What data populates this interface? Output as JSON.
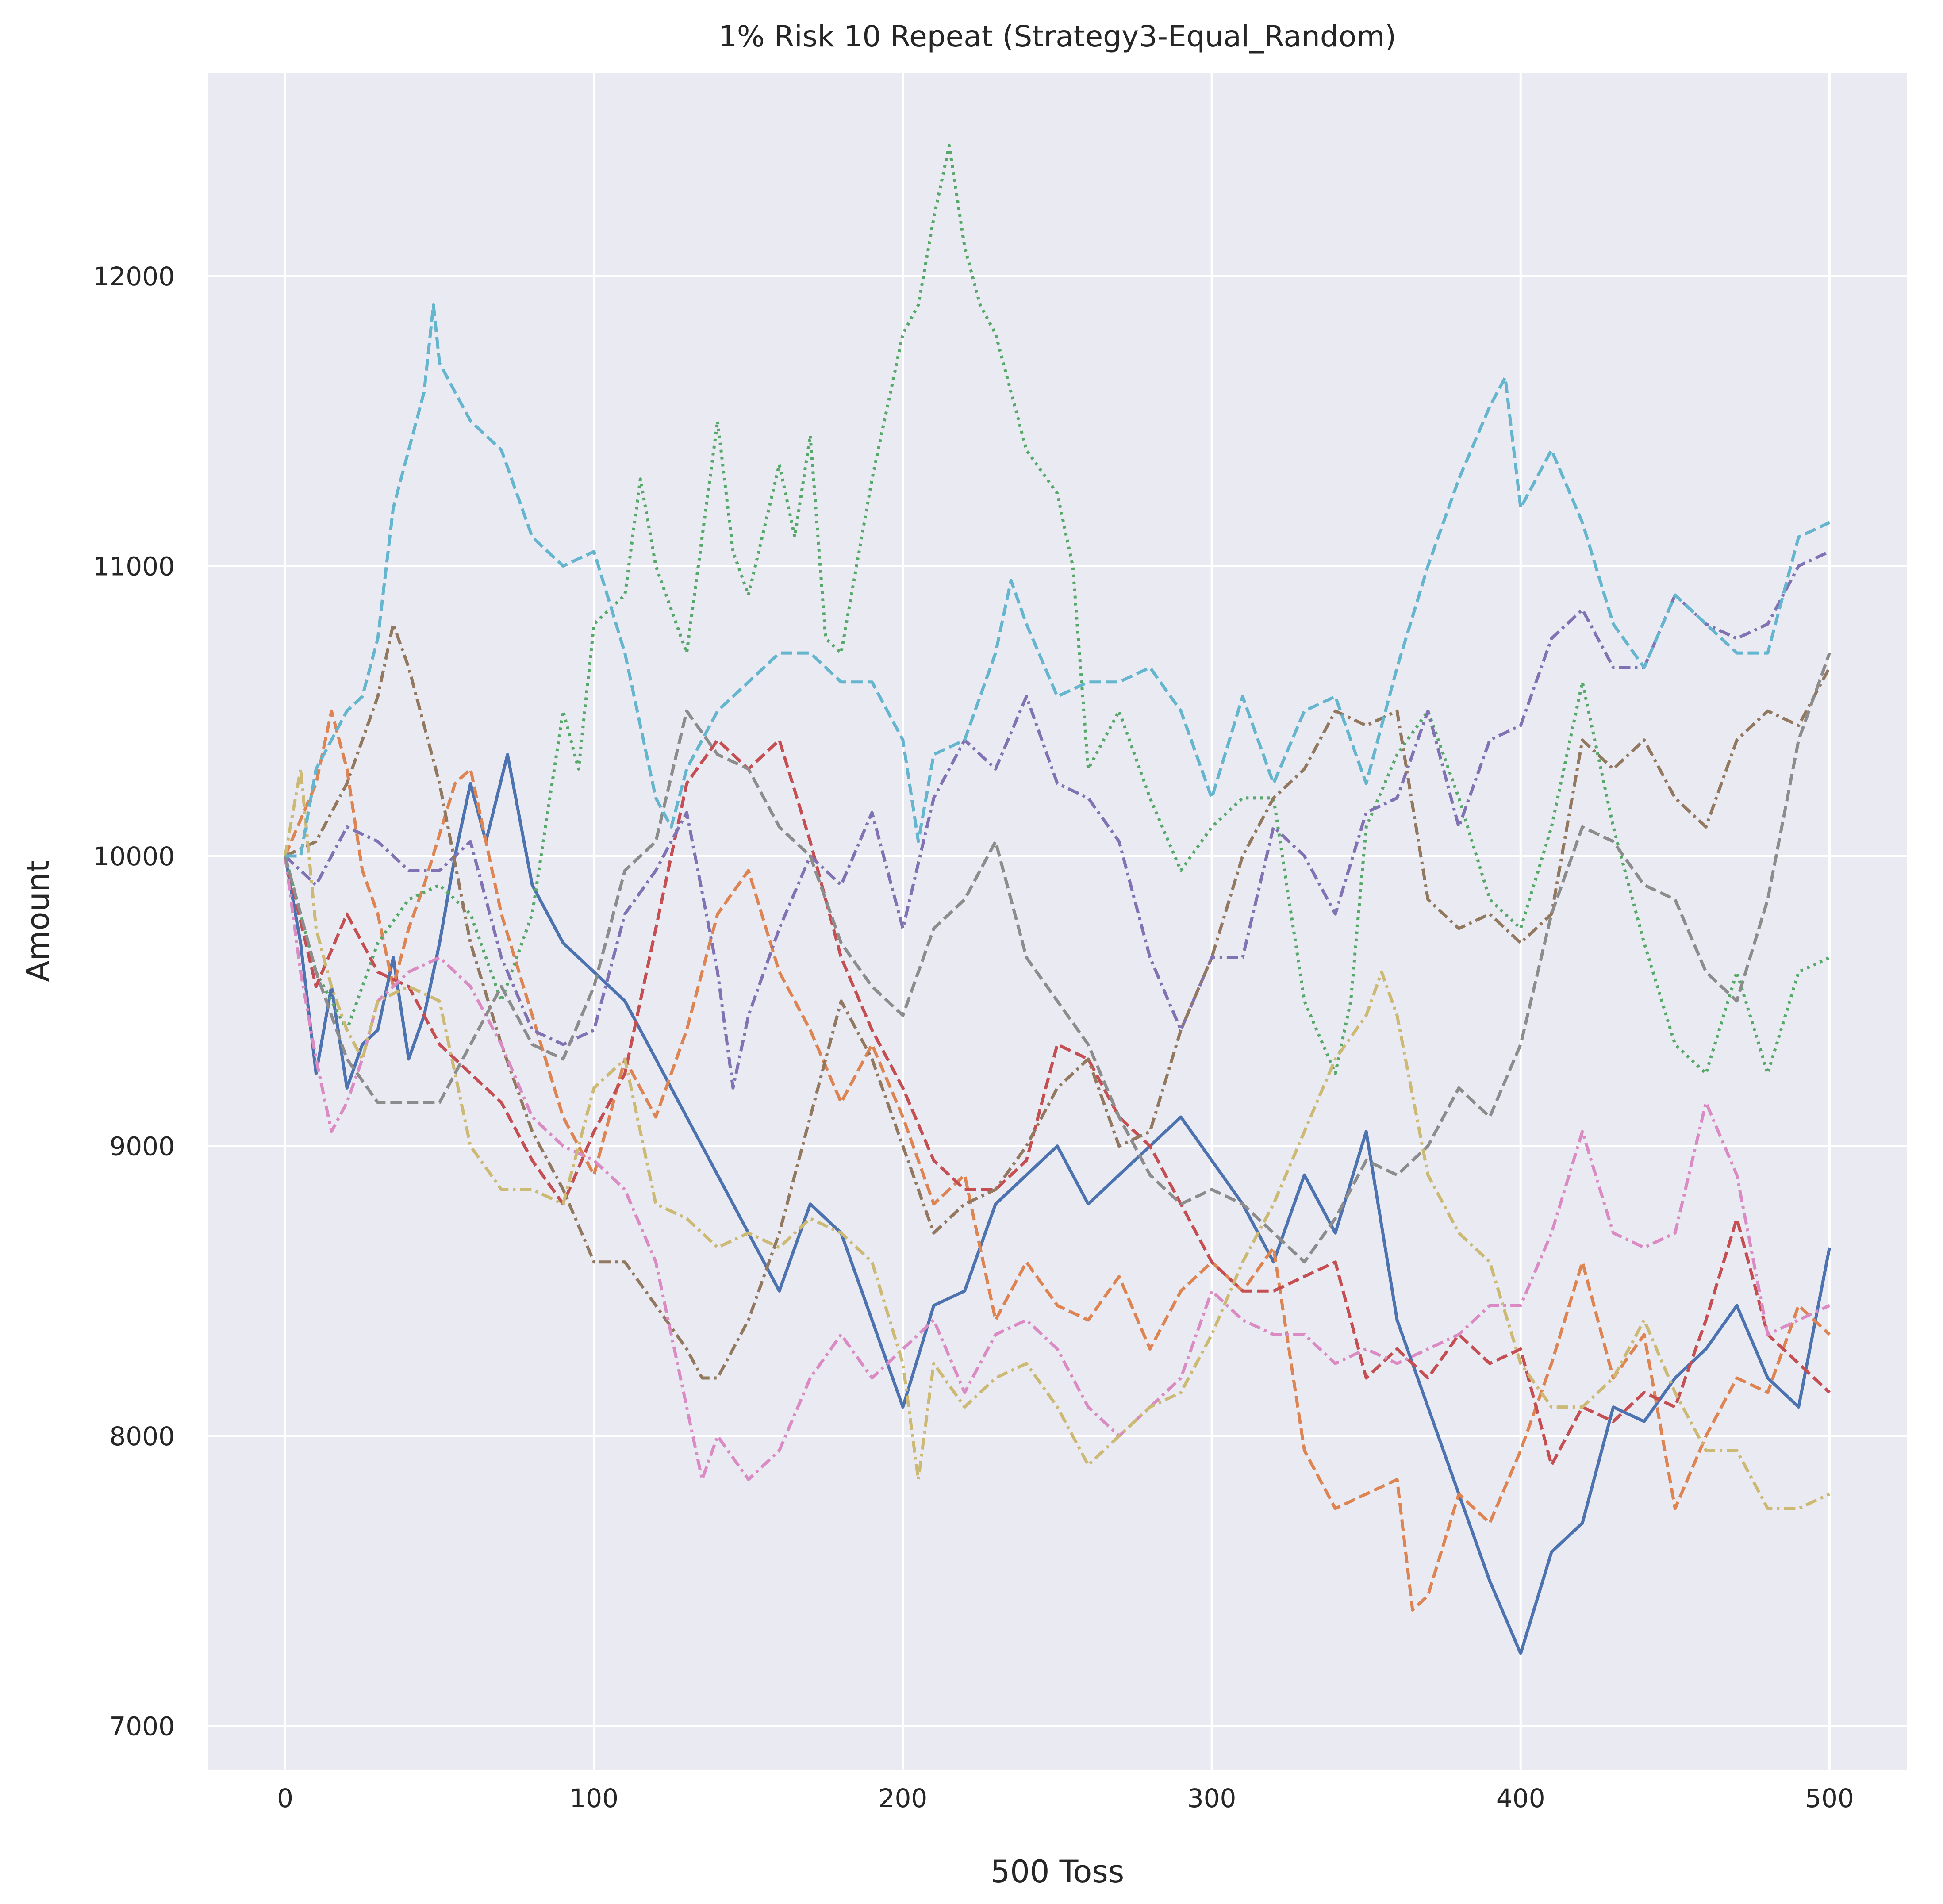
{
  "chart_data": {
    "type": "line",
    "title": "1% Risk 10 Repeat (Strategy3-Equal_Random)",
    "xlabel": "500 Toss",
    "ylabel": "Amount",
    "xlim": [
      -25,
      525
    ],
    "ylim": [
      6850,
      12700
    ],
    "xticks": [
      0,
      100,
      200,
      300,
      400,
      500
    ],
    "yticks": [
      7000,
      8000,
      9000,
      10000,
      11000,
      12000
    ],
    "xtick_labels": [
      "0",
      "100",
      "200",
      "300",
      "400",
      "500"
    ],
    "ytick_labels": [
      "7000",
      "8000",
      "9000",
      "10000",
      "11000",
      "12000"
    ],
    "grid": true,
    "legend": "none",
    "colors": {
      "background": "#eaeaf2",
      "grid": "#ffffff",
      "text": "#262626"
    },
    "series": [
      {
        "color": "#4c72b0",
        "linestyle": "solid",
        "x": [
          0,
          5,
          10,
          15,
          20,
          25,
          30,
          35,
          40,
          45,
          50,
          55,
          60,
          65,
          72,
          80,
          90,
          100,
          110,
          120,
          130,
          140,
          150,
          160,
          170,
          180,
          190,
          200,
          210,
          220,
          230,
          240,
          250,
          260,
          270,
          280,
          290,
          300,
          310,
          320,
          330,
          340,
          350,
          360,
          370,
          380,
          390,
          400,
          410,
          420,
          430,
          440,
          450,
          460,
          470,
          480,
          490,
          500
        ],
        "y": [
          10000,
          9700,
          9250,
          9550,
          9200,
          9350,
          9400,
          9650,
          9300,
          9450,
          9700,
          10000,
          10250,
          10050,
          10350,
          9900,
          9700,
          9600,
          9500,
          9300,
          9100,
          8900,
          8700,
          8500,
          8800,
          8700,
          8400,
          8100,
          8450,
          8500,
          8800,
          8900,
          9000,
          8800,
          8900,
          9000,
          9100,
          8950,
          8800,
          8600,
          8900,
          8700,
          9050,
          8400,
          8100,
          7800,
          7500,
          7250,
          7600,
          7700,
          8100,
          8050,
          8200,
          8300,
          8450,
          8200,
          8100,
          8650
        ]
      },
      {
        "color": "#dd8452",
        "linestyle": "dashed",
        "x": [
          0,
          10,
          15,
          20,
          25,
          30,
          35,
          40,
          45,
          55,
          60,
          70,
          80,
          90,
          100,
          110,
          120,
          130,
          140,
          150,
          160,
          170,
          180,
          190,
          200,
          210,
          220,
          230,
          240,
          250,
          260,
          270,
          280,
          290,
          300,
          310,
          320,
          330,
          340,
          350,
          360,
          365,
          370,
          380,
          390,
          400,
          410,
          420,
          430,
          440,
          450,
          460,
          470,
          480,
          490,
          500
        ],
        "y": [
          10000,
          10250,
          10500,
          10300,
          9950,
          9800,
          9550,
          9750,
          9900,
          10250,
          10300,
          9800,
          9450,
          9100,
          8900,
          9300,
          9100,
          9400,
          9800,
          9950,
          9600,
          9400,
          9150,
          9350,
          9100,
          8800,
          8900,
          8400,
          8600,
          8450,
          8400,
          8550,
          8300,
          8500,
          8600,
          8500,
          8650,
          7950,
          7750,
          7800,
          7850,
          7400,
          7450,
          7800,
          7700,
          7950,
          8250,
          8600,
          8200,
          8350,
          7750,
          8000,
          8200,
          8150,
          8450,
          8350
        ]
      },
      {
        "color": "#55a868",
        "linestyle": "dotted",
        "x": [
          0,
          10,
          20,
          30,
          40,
          50,
          60,
          70,
          80,
          90,
          95,
          100,
          110,
          115,
          120,
          130,
          140,
          145,
          150,
          160,
          165,
          170,
          175,
          180,
          190,
          200,
          205,
          210,
          215,
          220,
          225,
          230,
          240,
          250,
          255,
          260,
          270,
          280,
          290,
          300,
          310,
          320,
          330,
          340,
          345,
          350,
          360,
          370,
          380,
          390,
          400,
          410,
          420,
          430,
          440,
          450,
          460,
          470,
          480,
          490,
          500
        ],
        "y": [
          10000,
          9600,
          9400,
          9700,
          9850,
          9900,
          9800,
          9500,
          9800,
          10500,
          10300,
          10800,
          10900,
          11300,
          11000,
          10700,
          11500,
          11050,
          10900,
          11350,
          11100,
          11450,
          10750,
          10700,
          11300,
          11800,
          11900,
          12200,
          12450,
          12100,
          11900,
          11800,
          11400,
          11250,
          11000,
          10300,
          10500,
          10200,
          9950,
          10100,
          10200,
          10200,
          9500,
          9250,
          9500,
          10100,
          10350,
          10500,
          10200,
          9850,
          9750,
          10100,
          10600,
          10100,
          9700,
          9350,
          9250,
          9600,
          9250,
          9600,
          9650
        ]
      },
      {
        "color": "#c44e52",
        "linestyle": "dashed",
        "x": [
          0,
          10,
          20,
          30,
          40,
          50,
          60,
          70,
          80,
          90,
          100,
          110,
          120,
          130,
          140,
          150,
          160,
          170,
          180,
          190,
          200,
          210,
          220,
          230,
          240,
          250,
          260,
          270,
          280,
          290,
          300,
          310,
          320,
          330,
          340,
          350,
          360,
          370,
          380,
          390,
          400,
          410,
          420,
          430,
          440,
          450,
          460,
          470,
          480,
          490,
          500
        ],
        "y": [
          10000,
          9550,
          9800,
          9600,
          9550,
          9350,
          9250,
          9150,
          8950,
          8800,
          9050,
          9250,
          9750,
          10250,
          10400,
          10300,
          10400,
          10050,
          9650,
          9400,
          9200,
          8950,
          8850,
          8850,
          8950,
          9350,
          9300,
          9100,
          9000,
          8800,
          8600,
          8500,
          8500,
          8550,
          8600,
          8200,
          8300,
          8200,
          8350,
          8250,
          8300,
          7900,
          8100,
          8050,
          8150,
          8100,
          8400,
          8750,
          8350,
          8250,
          8150
        ]
      },
      {
        "color": "#8172b3",
        "linestyle": "dashdot",
        "x": [
          0,
          10,
          20,
          30,
          40,
          50,
          60,
          70,
          80,
          90,
          100,
          110,
          120,
          130,
          140,
          145,
          150,
          160,
          170,
          180,
          190,
          200,
          210,
          220,
          230,
          240,
          250,
          260,
          270,
          280,
          290,
          300,
          310,
          320,
          330,
          340,
          350,
          360,
          370,
          380,
          390,
          400,
          410,
          420,
          430,
          440,
          450,
          460,
          470,
          480,
          490,
          500
        ],
        "y": [
          10000,
          9900,
          10100,
          10050,
          9950,
          9950,
          10050,
          9650,
          9400,
          9350,
          9400,
          9800,
          9950,
          10150,
          9600,
          9200,
          9450,
          9750,
          10000,
          9900,
          10150,
          9750,
          10200,
          10400,
          10300,
          10550,
          10250,
          10200,
          10050,
          9650,
          9400,
          9650,
          9650,
          10100,
          10000,
          9800,
          10150,
          10200,
          10500,
          10100,
          10400,
          10450,
          10750,
          10850,
          10650,
          10650,
          10900,
          10800,
          10750,
          10800,
          11000,
          11050
        ]
      },
      {
        "color": "#937860",
        "linestyle": "dashdot",
        "x": [
          0,
          10,
          20,
          30,
          35,
          40,
          45,
          50,
          60,
          70,
          80,
          90,
          100,
          110,
          120,
          130,
          135,
          140,
          150,
          160,
          170,
          180,
          190,
          200,
          210,
          220,
          230,
          240,
          250,
          260,
          270,
          280,
          290,
          300,
          310,
          320,
          330,
          340,
          350,
          360,
          370,
          380,
          390,
          400,
          410,
          420,
          430,
          440,
          450,
          460,
          470,
          480,
          490,
          500
        ],
        "y": [
          10000,
          10050,
          10250,
          10550,
          10800,
          10650,
          10450,
          10250,
          9700,
          9350,
          9050,
          8850,
          8600,
          8600,
          8450,
          8300,
          8200,
          8200,
          8400,
          8700,
          9100,
          9500,
          9300,
          9000,
          8700,
          8800,
          8850,
          9000,
          9200,
          9300,
          9000,
          9050,
          9400,
          9650,
          10000,
          10200,
          10300,
          10500,
          10450,
          10500,
          9850,
          9750,
          9800,
          9700,
          9800,
          10400,
          10300,
          10400,
          10200,
          10100,
          10400,
          10500,
          10450,
          10650
        ]
      },
      {
        "color": "#da8bc3",
        "linestyle": "dashdot",
        "x": [
          0,
          5,
          10,
          15,
          20,
          25,
          30,
          40,
          50,
          60,
          70,
          80,
          90,
          100,
          110,
          120,
          130,
          135,
          140,
          150,
          160,
          170,
          180,
          190,
          200,
          210,
          220,
          230,
          240,
          250,
          260,
          270,
          280,
          290,
          300,
          310,
          320,
          330,
          340,
          350,
          360,
          370,
          380,
          390,
          400,
          410,
          420,
          430,
          440,
          450,
          460,
          470,
          480,
          490,
          500
        ],
        "y": [
          10000,
          9600,
          9300,
          9050,
          9150,
          9300,
          9500,
          9600,
          9650,
          9550,
          9350,
          9100,
          9000,
          8950,
          8850,
          8600,
          8100,
          7850,
          8000,
          7850,
          7950,
          8200,
          8350,
          8200,
          8300,
          8400,
          8150,
          8350,
          8400,
          8300,
          8100,
          8000,
          8100,
          8200,
          8500,
          8400,
          8350,
          8350,
          8250,
          8300,
          8250,
          8300,
          8350,
          8450,
          8450,
          8700,
          9050,
          8700,
          8650,
          8700,
          9150,
          8900,
          8350,
          8400,
          8450
        ]
      },
      {
        "color": "#8c8c8c",
        "linestyle": "dashed",
        "x": [
          0,
          10,
          20,
          30,
          40,
          50,
          60,
          70,
          80,
          90,
          100,
          110,
          120,
          130,
          140,
          150,
          160,
          170,
          180,
          190,
          200,
          210,
          220,
          230,
          240,
          250,
          260,
          270,
          280,
          290,
          300,
          310,
          320,
          330,
          340,
          350,
          360,
          370,
          380,
          390,
          400,
          410,
          420,
          430,
          440,
          450,
          460,
          470,
          480,
          490,
          500
        ],
        "y": [
          10000,
          9600,
          9300,
          9150,
          9150,
          9150,
          9350,
          9550,
          9350,
          9300,
          9550,
          9950,
          10050,
          10500,
          10350,
          10300,
          10100,
          10000,
          9700,
          9550,
          9450,
          9750,
          9850,
          10050,
          9650,
          9500,
          9350,
          9100,
          8900,
          8800,
          8850,
          8800,
          8700,
          8600,
          8750,
          8950,
          8900,
          9000,
          9200,
          9100,
          9350,
          9800,
          10100,
          10050,
          9900,
          9850,
          9600,
          9500,
          9850,
          10400,
          10700
        ]
      },
      {
        "color": "#ccb974",
        "linestyle": "dashdot",
        "x": [
          0,
          5,
          10,
          15,
          20,
          25,
          30,
          40,
          50,
          60,
          70,
          80,
          90,
          100,
          110,
          120,
          130,
          140,
          150,
          160,
          170,
          180,
          190,
          200,
          205,
          210,
          220,
          230,
          240,
          250,
          260,
          270,
          280,
          290,
          300,
          310,
          320,
          330,
          340,
          350,
          355,
          360,
          370,
          380,
          390,
          400,
          410,
          420,
          430,
          440,
          450,
          460,
          470,
          480,
          490,
          500
        ],
        "y": [
          10000,
          10300,
          9750,
          9550,
          9400,
          9300,
          9500,
          9550,
          9500,
          9000,
          8850,
          8850,
          8800,
          9200,
          9300,
          8800,
          8750,
          8650,
          8700,
          8650,
          8750,
          8700,
          8600,
          8250,
          7850,
          8250,
          8100,
          8200,
          8250,
          8100,
          7900,
          8000,
          8100,
          8150,
          8350,
          8600,
          8800,
          9050,
          9300,
          9450,
          9600,
          9450,
          8900,
          8700,
          8600,
          8250,
          8100,
          8100,
          8200,
          8400,
          8150,
          7950,
          7950,
          7750,
          7750,
          7800
        ]
      },
      {
        "color": "#64b5cd",
        "linestyle": "dashed",
        "x": [
          0,
          5,
          10,
          15,
          20,
          25,
          30,
          35,
          40,
          45,
          48,
          50,
          55,
          60,
          70,
          80,
          90,
          100,
          110,
          120,
          125,
          130,
          140,
          150,
          160,
          170,
          180,
          190,
          200,
          205,
          210,
          220,
          230,
          235,
          240,
          250,
          260,
          270,
          280,
          290,
          300,
          310,
          320,
          330,
          340,
          350,
          360,
          370,
          380,
          390,
          395,
          400,
          410,
          420,
          430,
          440,
          450,
          460,
          470,
          480,
          490,
          500
        ],
        "y": [
          10000,
          10000,
          10300,
          10400,
          10500,
          10550,
          10750,
          11200,
          11400,
          11600,
          11900,
          11700,
          11600,
          11500,
          11400,
          11100,
          11000,
          11050,
          10700,
          10200,
          10100,
          10300,
          10500,
          10600,
          10700,
          10700,
          10600,
          10600,
          10400,
          10050,
          10350,
          10400,
          10700,
          10950,
          10800,
          10550,
          10600,
          10600,
          10650,
          10500,
          10200,
          10550,
          10250,
          10500,
          10550,
          10250,
          10650,
          11000,
          11300,
          11550,
          11650,
          11200,
          11400,
          11150,
          10800,
          10650,
          10900,
          10800,
          10700,
          10700,
          11100,
          11150
        ]
      }
    ]
  }
}
